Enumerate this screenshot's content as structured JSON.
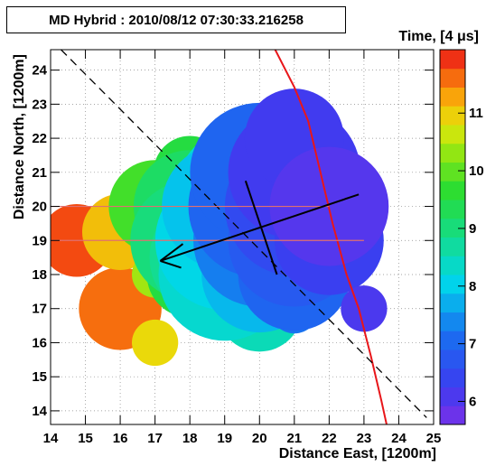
{
  "chart_data": {
    "type": "scatter",
    "title": "MD Hybrid : 2010/08/12 07:30:33.216258",
    "xlabel": "Distance East,  [1200m]",
    "ylabel": "Distance North, [1200m]",
    "zlabel": "Time,  [4 μs]",
    "xlim": [
      14,
      25
    ],
    "ylim": [
      13.6,
      24.6
    ],
    "zlim": [
      5.6,
      12.1
    ],
    "grid": true,
    "colormap": "rainbow",
    "x_ticks": [
      "14",
      "15",
      "16",
      "17",
      "18",
      "19",
      "20",
      "21",
      "22",
      "23",
      "24",
      "25"
    ],
    "y_ticks": [
      "14",
      "15",
      "16",
      "17",
      "18",
      "19",
      "20",
      "21",
      "22",
      "23",
      "24"
    ],
    "z_ticks": [
      "6",
      "7",
      "8",
      "9",
      "10",
      "11"
    ],
    "points": [
      {
        "x": 14.75,
        "y": 19.0,
        "time": 11.8,
        "size": 2.2
      },
      {
        "x": 16.0,
        "y": 19.25,
        "time": 11.1,
        "size": 2.3
      },
      {
        "x": 16.0,
        "y": 17.0,
        "time": 11.6,
        "size": 2.5
      },
      {
        "x": 17.0,
        "y": 16.0,
        "time": 10.9,
        "size": 1.4
      },
      {
        "x": 17.0,
        "y": 18.0,
        "time": 10.4,
        "size": 1.4
      },
      {
        "x": 17.0,
        "y": 20.0,
        "time": 9.8,
        "size": 2.8
      },
      {
        "x": 18.0,
        "y": 21.0,
        "time": 9.5,
        "size": 2.2
      },
      {
        "x": 18.0,
        "y": 18.0,
        "time": 9.5,
        "size": 2.6
      },
      {
        "x": 18.0,
        "y": 20.0,
        "time": 9.2,
        "size": 3.4
      },
      {
        "x": 18.0,
        "y": 19.0,
        "time": 9.0,
        "size": 3.6
      },
      {
        "x": 18.6,
        "y": 18.5,
        "time": 8.8,
        "size": 3.7
      },
      {
        "x": 19.0,
        "y": 18.0,
        "time": 8.3,
        "size": 4.0
      },
      {
        "x": 19.0,
        "y": 19.0,
        "time": 8.1,
        "size": 4.2
      },
      {
        "x": 19.0,
        "y": 20.0,
        "time": 7.9,
        "size": 3.8
      },
      {
        "x": 19.5,
        "y": 20.4,
        "time": 8.3,
        "size": 4.0
      },
      {
        "x": 20.0,
        "y": 17.0,
        "time": 8.5,
        "size": 2.6
      },
      {
        "x": 20.0,
        "y": 18.0,
        "time": 7.8,
        "size": 3.5
      },
      {
        "x": 20.0,
        "y": 19.0,
        "time": 7.3,
        "size": 4.0
      },
      {
        "x": 20.0,
        "y": 20.0,
        "time": 7.0,
        "size": 4.3
      },
      {
        "x": 20.0,
        "y": 21.0,
        "time": 7.0,
        "size": 4.2
      },
      {
        "x": 21.0,
        "y": 17.0,
        "time": 7.2,
        "size": 1.5
      },
      {
        "x": 21.0,
        "y": 18.0,
        "time": 7.0,
        "size": 3.4
      },
      {
        "x": 21.0,
        "y": 19.0,
        "time": 6.8,
        "size": 4.0
      },
      {
        "x": 21.0,
        "y": 20.0,
        "time": 6.5,
        "size": 4.2
      },
      {
        "x": 21.0,
        "y": 21.0,
        "time": 6.2,
        "size": 4.0
      },
      {
        "x": 21.0,
        "y": 22.0,
        "time": 6.2,
        "size": 3.0
      },
      {
        "x": 22.0,
        "y": 19.0,
        "time": 6.3,
        "size": 3.3
      },
      {
        "x": 22.0,
        "y": 20.0,
        "time": 6.0,
        "size": 3.6
      },
      {
        "x": 23.0,
        "y": 17.0,
        "time": 6.1,
        "size": 1.4
      }
    ],
    "lines": [
      {
        "name": "red-curve",
        "color": "#e8161a",
        "style": "solid",
        "points": [
          [
            20.45,
            24.6
          ],
          [
            21.0,
            23.5
          ],
          [
            21.4,
            22.5
          ],
          [
            21.75,
            21.0
          ],
          [
            22.1,
            19.5
          ],
          [
            22.5,
            18.0
          ],
          [
            22.85,
            17.0
          ],
          [
            23.2,
            15.6
          ],
          [
            23.5,
            14.3
          ],
          [
            23.65,
            13.6
          ]
        ]
      },
      {
        "name": "dashed-line",
        "color": "#000000",
        "style": "dashed",
        "points": [
          [
            14.3,
            24.6
          ],
          [
            24.8,
            13.8
          ]
        ]
      },
      {
        "name": "horizontal-line-20",
        "color": "#e07070",
        "style": "solid",
        "points": [
          [
            14.0,
            20.0
          ],
          [
            22.0,
            20.0
          ]
        ]
      },
      {
        "name": "horizontal-line-19",
        "color": "#e07070",
        "style": "solid",
        "points": [
          [
            14.0,
            19.0
          ],
          [
            23.0,
            19.0
          ]
        ]
      },
      {
        "name": "short-cross-line",
        "color": "#000000",
        "style": "solid",
        "points": [
          [
            19.6,
            20.75
          ],
          [
            20.5,
            18.0
          ]
        ]
      },
      {
        "name": "arrow-line",
        "color": "#000000",
        "style": "solid",
        "points": [
          [
            22.85,
            20.35
          ],
          [
            17.15,
            18.4
          ]
        ]
      },
      {
        "name": "arrow-head-upper",
        "color": "#000000",
        "style": "solid",
        "points": [
          [
            17.15,
            18.4
          ],
          [
            17.8,
            18.9
          ]
        ]
      },
      {
        "name": "arrow-head-lower",
        "color": "#000000",
        "style": "solid",
        "points": [
          [
            17.15,
            18.4
          ],
          [
            17.75,
            18.2
          ]
        ]
      }
    ]
  }
}
